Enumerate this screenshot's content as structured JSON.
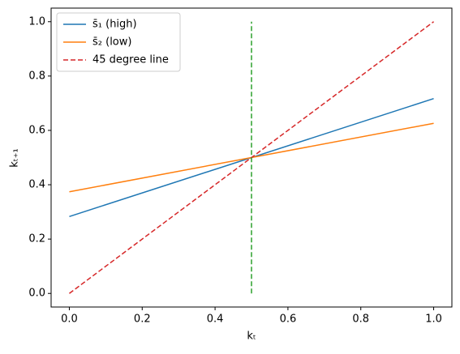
{
  "chart_data": {
    "type": "line",
    "xlabel": "kₜ",
    "ylabel": "kₜ₊₁",
    "series": [
      {
        "name": "s̄₁ (high)",
        "color": "#1f77b4",
        "dash": false,
        "x": [
          0,
          1
        ],
        "values": [
          0.283,
          0.717
        ]
      },
      {
        "name": "s̄₂ (low)",
        "color": "#ff7f0e",
        "dash": false,
        "x": [
          0,
          1
        ],
        "values": [
          0.374,
          0.626
        ]
      },
      {
        "name": "45 degree line",
        "color": "#d62728",
        "dash": true,
        "x": [
          0,
          1
        ],
        "values": [
          0,
          1
        ]
      },
      {
        "color": "#2ca02c",
        "dash": true,
        "x": [
          0.5,
          0.5
        ],
        "values": [
          0,
          1
        ]
      }
    ],
    "xlim": [
      -0.05,
      1.05
    ],
    "ylim": [
      -0.05,
      1.05
    ],
    "xticks": [
      {
        "value": 0,
        "label": "0.0"
      },
      0.2,
      0.4,
      0.6,
      0.8,
      {
        "value": 1,
        "label": "1.0"
      }
    ],
    "yticks": [
      {
        "value": 0,
        "label": "0.0"
      },
      0.2,
      0.4,
      0.6,
      0.8,
      {
        "value": 1,
        "label": "1.0"
      }
    ],
    "grid": false,
    "legend": "upper left"
  }
}
